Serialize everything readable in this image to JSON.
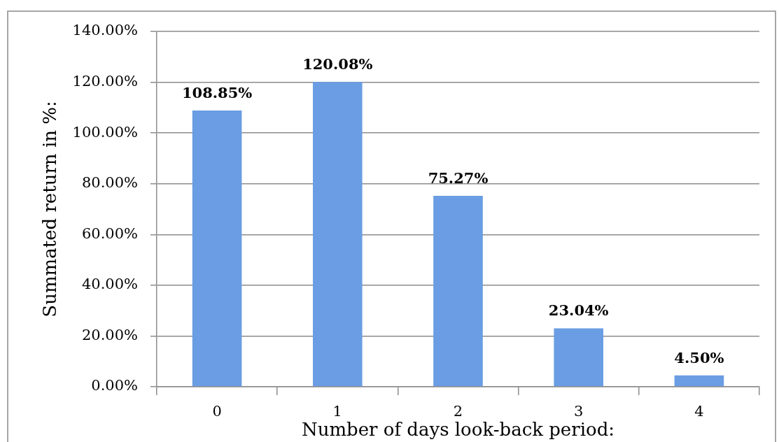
{
  "chart_data": {
    "type": "bar",
    "xlabel": "Number of days look-back period:",
    "ylabel": "Summated return in %:",
    "categories": [
      "0",
      "1",
      "2",
      "3",
      "4"
    ],
    "values": [
      108.85,
      120.08,
      75.27,
      23.04,
      4.5
    ],
    "value_labels": [
      "108.85%",
      "120.08%",
      "75.27%",
      "23.04%",
      "4.50%"
    ],
    "color": "#6a9de3",
    "ylim": [
      0,
      140
    ],
    "yticks": [
      {
        "value": 0,
        "label": "0.00%"
      },
      {
        "value": 20,
        "label": "20.00%"
      },
      {
        "value": 40,
        "label": "40.00%"
      },
      {
        "value": 60,
        "label": "60.00%"
      },
      {
        "value": 80,
        "label": "80.00%"
      },
      {
        "value": 100,
        "label": "100.00%"
      },
      {
        "value": 120,
        "label": "120.00%"
      },
      {
        "value": 140,
        "label": "140.00%"
      }
    ],
    "grid": "y"
  }
}
